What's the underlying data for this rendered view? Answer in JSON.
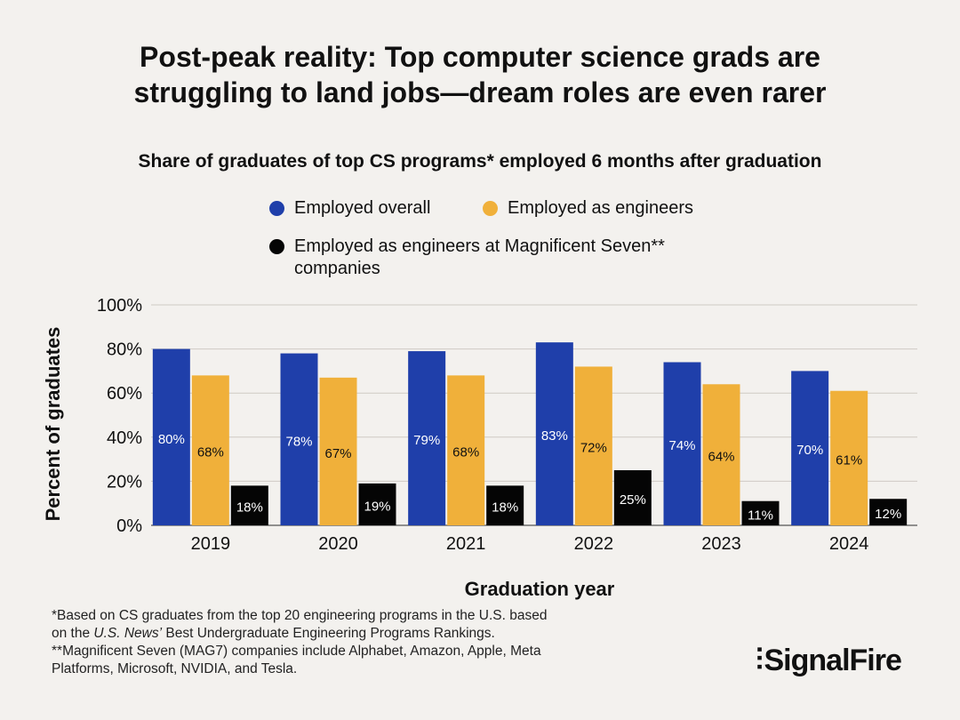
{
  "header": {
    "title_line1": "Post-peak reality: Top computer science grads are",
    "title_line2": "struggling to land jobs—dream roles are even rarer"
  },
  "chart_data": {
    "type": "bar",
    "title": "Share of graduates of top CS programs* employed 6 months after graduation",
    "xlabel": "Graduation year",
    "ylabel": "Percent of graduates",
    "ylim": [
      0,
      100
    ],
    "yticks": [
      "0%",
      "20%",
      "40%",
      "60%",
      "80%",
      "100%"
    ],
    "ytick_values": [
      0,
      20,
      40,
      60,
      80,
      100
    ],
    "grid": true,
    "legend_position": "top-center",
    "categories": [
      "2019",
      "2020",
      "2021",
      "2022",
      "2023",
      "2024"
    ],
    "series": [
      {
        "name": "Employed overall",
        "color": "#1f3faa",
        "label_color": "#ffffff",
        "values": [
          80,
          78,
          79,
          83,
          74,
          70
        ],
        "labels": [
          "80%",
          "78%",
          "79%",
          "83%",
          "74%",
          "70%"
        ]
      },
      {
        "name": "Employed as engineers",
        "color": "#f0b03a",
        "label_color": "#111111",
        "values": [
          68,
          67,
          68,
          72,
          64,
          61
        ],
        "labels": [
          "68%",
          "67%",
          "68%",
          "72%",
          "64%",
          "61%"
        ]
      },
      {
        "name": "Employed as engineers at Magnificent Seven** companies",
        "color": "#050505",
        "label_color": "#ffffff",
        "values": [
          18,
          19,
          18,
          25,
          11,
          12
        ],
        "labels": [
          "18%",
          "19%",
          "18%",
          "25%",
          "11%",
          "12%"
        ]
      }
    ]
  },
  "legend": {
    "item1_line1": "Employed overall",
    "item2_line1": "Employed as engineers",
    "item3_line1": "Employed as engineers at Magnificent Seven**",
    "item3_line2": "companies"
  },
  "footnotes": {
    "line1": "*Based on CS graduates from the top 20 engineering programs in the U.S. based",
    "line2_pre": "on the ",
    "line2_italic": "U.S. News’",
    "line2_post": " Best Undergraduate Engineering Programs Rankings.",
    "line3": "**Magnificent Seven (MAG7) companies include Alphabet, Amazon, Apple, Meta",
    "line4": "Platforms, Microsoft, NVIDIA, and Tesla."
  },
  "brand": {
    "name": "SignalFire",
    "mark": "⫶"
  },
  "colors": {
    "background": "#f3f1ee",
    "grid": "#cfcac4"
  }
}
